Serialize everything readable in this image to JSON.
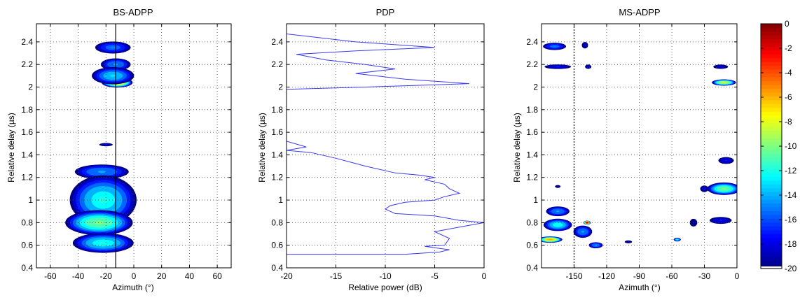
{
  "colors": {
    "pdp_line": "#3a3aee",
    "grid": "#444444",
    "axis": "#000000",
    "colormap": [
      "#00008f",
      "#0000ff",
      "#0080ff",
      "#00ffff",
      "#80ff80",
      "#ffff00",
      "#ff8000",
      "#ff0000",
      "#800000"
    ]
  },
  "chart_data": [
    {
      "type": "heatmap",
      "title": "BS-ADPP",
      "xlabel": "Azimuth (°)",
      "ylabel": "Relative delay (µs)",
      "xlim": [
        -70,
        70
      ],
      "ylim": [
        0.4,
        2.56
      ],
      "xticks": [
        -60,
        -40,
        -20,
        0,
        20,
        40,
        60
      ],
      "yticks": [
        0.4,
        0.6,
        0.8,
        1,
        1.2,
        1.4,
        1.6,
        1.8,
        2,
        2.2,
        2.4
      ],
      "grid": true,
      "reference_line_x": -13,
      "blobs": [
        {
          "x": -15,
          "y": 2.35,
          "sx": 12,
          "sy": 0.05,
          "peak_db": -15
        },
        {
          "x": -13,
          "y": 2.2,
          "sx": 10,
          "sy": 0.05,
          "peak_db": -14
        },
        {
          "x": -12,
          "y": 2.04,
          "sx": 10,
          "sy": 0.04,
          "peak_db": -6
        },
        {
          "x": -15,
          "y": 2.1,
          "sx": 14,
          "sy": 0.07,
          "peak_db": -13
        },
        {
          "x": -20,
          "y": 1.49,
          "sx": 5,
          "sy": 0.015,
          "peak_db": -18
        },
        {
          "x": -23,
          "y": 1.25,
          "sx": 18,
          "sy": 0.06,
          "peak_db": -14
        },
        {
          "x": -18,
          "y": 1.06,
          "sx": 12,
          "sy": 0.05,
          "peak_db": -3
        },
        {
          "x": -22,
          "y": 1.0,
          "sx": 22,
          "sy": 0.2,
          "peak_db": -12
        },
        {
          "x": -28,
          "y": 0.8,
          "sx": 14,
          "sy": 0.035,
          "peak_db": 0
        },
        {
          "x": -25,
          "y": 0.8,
          "sx": 22,
          "sy": 0.1,
          "peak_db": -10
        },
        {
          "x": -18,
          "y": 0.65,
          "sx": 12,
          "sy": 0.04,
          "peak_db": -4
        },
        {
          "x": -22,
          "y": 0.62,
          "sx": 20,
          "sy": 0.08,
          "peak_db": -12
        }
      ]
    },
    {
      "type": "line",
      "title": "PDP",
      "xlabel": "Relative power (dB)",
      "ylabel": "Relative delay (µs)",
      "xlim": [
        -20,
        0
      ],
      "ylim": [
        0.4,
        2.56
      ],
      "xticks": [
        -20,
        -15,
        -10,
        -5,
        0
      ],
      "yticks": [
        0.4,
        0.6,
        0.8,
        1,
        1.2,
        1.4,
        1.6,
        1.8,
        2,
        2.2,
        2.4
      ],
      "grid": true,
      "series": [
        {
          "points": [
            [
              -20,
              0.52
            ],
            [
              -8,
              0.52
            ],
            [
              -4.5,
              0.54
            ],
            [
              -3.5,
              0.56
            ],
            [
              -6,
              0.59
            ],
            [
              -4,
              0.6
            ],
            [
              -3.5,
              0.66
            ],
            [
              -4.5,
              0.7
            ],
            [
              -5,
              0.72
            ],
            [
              -2.5,
              0.76
            ],
            [
              0,
              0.8
            ],
            [
              -2.5,
              0.82
            ],
            [
              -5,
              0.86
            ],
            [
              -9,
              0.88
            ],
            [
              -10,
              0.92
            ],
            [
              -9.5,
              0.95
            ],
            [
              -8,
              0.98
            ],
            [
              -5,
              1.0
            ],
            [
              -4,
              1.03
            ],
            [
              -2.5,
              1.06
            ],
            [
              -3.5,
              1.1
            ],
            [
              -4,
              1.14
            ],
            [
              -6,
              1.18
            ],
            [
              -5,
              1.2
            ],
            [
              -6.5,
              1.22
            ],
            [
              -9,
              1.24
            ],
            [
              -12,
              1.3
            ],
            [
              -15,
              1.37
            ],
            [
              -17.5,
              1.42
            ],
            [
              -20,
              1.44
            ],
            [
              -18,
              1.47
            ],
            [
              -20,
              1.52
            ],
            [
              -20,
              1.98
            ],
            [
              -12,
              2.0
            ],
            [
              -1.5,
              2.03
            ],
            [
              -8,
              2.07
            ],
            [
              -13,
              2.12
            ],
            [
              -9,
              2.16
            ],
            [
              -12,
              2.2
            ],
            [
              -16,
              2.24
            ],
            [
              -19,
              2.29
            ],
            [
              -13,
              2.32
            ],
            [
              -5,
              2.35
            ],
            [
              -13,
              2.4
            ],
            [
              -20,
              2.47
            ]
          ]
        }
      ]
    },
    {
      "type": "heatmap",
      "title": "MS-ADPP",
      "xlabel": "Azimuth (°)",
      "ylabel": "Relative delay (µs)",
      "xlim": [
        -180,
        0
      ],
      "ylim": [
        0.4,
        2.56
      ],
      "xticks": [
        -150,
        -120,
        -90,
        -60,
        -30,
        0
      ],
      "yticks": [
        0.4,
        0.6,
        0.8,
        1,
        1.2,
        1.4,
        1.6,
        1.8,
        2,
        2.2,
        2.4
      ],
      "grid": true,
      "reference_line_x": -150,
      "blobs": [
        {
          "x": -168,
          "y": 2.36,
          "sx": 10,
          "sy": 0.03,
          "peak_db": -15
        },
        {
          "x": -140,
          "y": 2.37,
          "sx": 3,
          "sy": 0.03,
          "peak_db": -18
        },
        {
          "x": -165,
          "y": 2.18,
          "sx": 12,
          "sy": 0.02,
          "peak_db": -17
        },
        {
          "x": -137,
          "y": 2.18,
          "sx": 3,
          "sy": 0.02,
          "peak_db": -18
        },
        {
          "x": -12,
          "y": 2.04,
          "sx": 10,
          "sy": 0.025,
          "peak_db": -8
        },
        {
          "x": -15,
          "y": 2.18,
          "sx": 7,
          "sy": 0.02,
          "peak_db": -18
        },
        {
          "x": -12,
          "y": 1.1,
          "sx": 14,
          "sy": 0.05,
          "peak_db": -10
        },
        {
          "x": -10,
          "y": 1.35,
          "sx": 7,
          "sy": 0.03,
          "peak_db": -17
        },
        {
          "x": -15,
          "y": 0.82,
          "sx": 10,
          "sy": 0.03,
          "peak_db": -17
        },
        {
          "x": -165,
          "y": 0.9,
          "sx": 10,
          "sy": 0.04,
          "peak_db": -14
        },
        {
          "x": -165,
          "y": 0.78,
          "sx": 12,
          "sy": 0.05,
          "peak_db": -12
        },
        {
          "x": -172,
          "y": 0.65,
          "sx": 10,
          "sy": 0.025,
          "peak_db": -6
        },
        {
          "x": -138,
          "y": 0.8,
          "sx": 3,
          "sy": 0.015,
          "peak_db": -1
        },
        {
          "x": -142,
          "y": 0.72,
          "sx": 8,
          "sy": 0.05,
          "peak_db": -14
        },
        {
          "x": -130,
          "y": 0.6,
          "sx": 6,
          "sy": 0.025,
          "peak_db": -14
        },
        {
          "x": -165,
          "y": 1.12,
          "sx": 3,
          "sy": 0.015,
          "peak_db": -19
        },
        {
          "x": -100,
          "y": 0.63,
          "sx": 4,
          "sy": 0.015,
          "peak_db": -19
        },
        {
          "x": -55,
          "y": 0.65,
          "sx": 3,
          "sy": 0.015,
          "peak_db": -12
        },
        {
          "x": -40,
          "y": 0.8,
          "sx": 4,
          "sy": 0.04,
          "peak_db": -19
        },
        {
          "x": -30,
          "y": 1.1,
          "sx": 4,
          "sy": 0.03,
          "peak_db": -18
        }
      ]
    }
  ],
  "colorbar": {
    "min": -20,
    "max": 0,
    "ticks": [
      0,
      -2,
      -4,
      -6,
      -8,
      -10,
      -12,
      -14,
      -16,
      -18,
      -20
    ]
  }
}
